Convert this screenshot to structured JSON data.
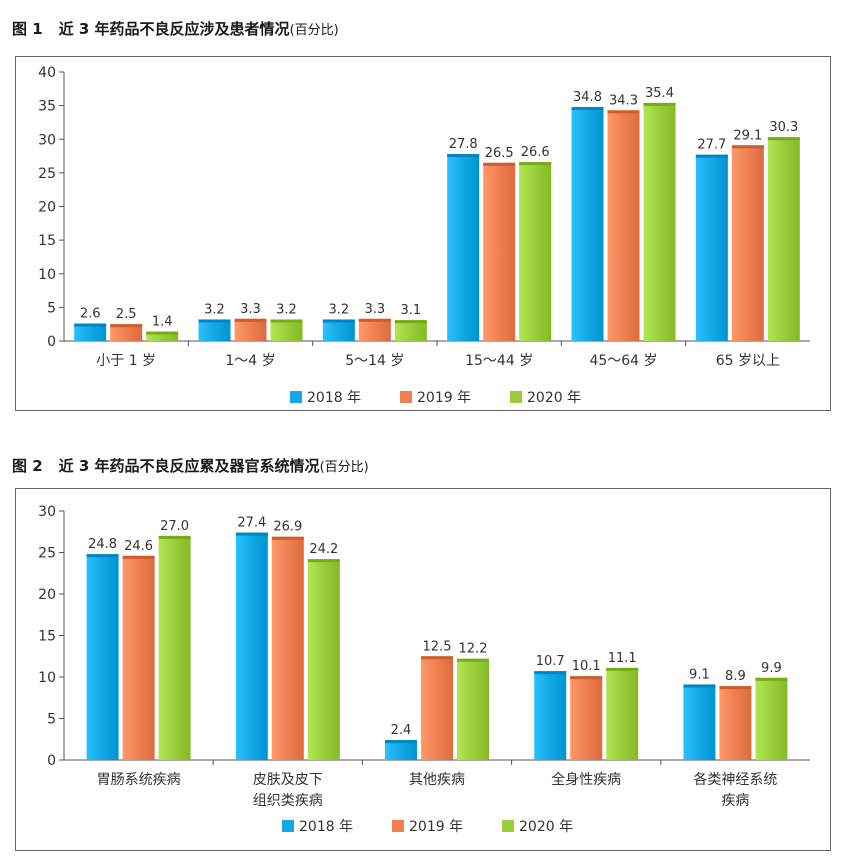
{
  "figure1": {
    "number": "图 1",
    "title": "近 3 年药品不良反应涉及患者情况",
    "unit": "(百分比)"
  },
  "figure2": {
    "number": "图 2",
    "title": "近 3 年药品不良反应累及器官系统情况",
    "unit": "(百分比)"
  },
  "colors": {
    "2018": "#12a8e6",
    "2019": "#f07f51",
    "2020": "#9acd3a"
  },
  "chart_data": [
    {
      "type": "bar",
      "categories": [
        "小于 1 岁",
        "1～4 岁",
        "5～14 岁",
        "15～44 岁",
        "45～64 岁",
        "65 岁以上"
      ],
      "series": [
        {
          "name": "2018 年",
          "values": [
            2.6,
            3.2,
            3.2,
            27.8,
            34.8,
            27.7
          ]
        },
        {
          "name": "2019 年",
          "values": [
            2.5,
            3.3,
            3.3,
            26.5,
            34.3,
            29.1
          ]
        },
        {
          "name": "2020 年",
          "values": [
            1.4,
            3.2,
            3.1,
            26.6,
            35.4,
            30.3
          ]
        }
      ],
      "value_labels": [
        [
          "2.6",
          "3.2",
          "3.2",
          "27.8",
          "34.8",
          "27.7"
        ],
        [
          "2.5",
          "3.3",
          "3.3",
          "26.5",
          "34.3",
          "29.1"
        ],
        [
          "1.4",
          "3.2",
          "3.1",
          "26.6",
          "35.4",
          "30.3"
        ]
      ],
      "ylim": [
        0,
        40
      ],
      "yticks": [
        "0",
        "5",
        "10",
        "15",
        "20",
        "25",
        "30",
        "35",
        "40"
      ],
      "legend_position": "bottom-center",
      "grid": false
    },
    {
      "type": "bar",
      "categories": [
        [
          "胃肠系统疾病"
        ],
        [
          "皮肤及皮下",
          "组织类疾病"
        ],
        [
          "其他疾病"
        ],
        [
          "全身性疾病"
        ],
        [
          "各类神经系统",
          "疾病"
        ]
      ],
      "series": [
        {
          "name": "2018 年",
          "values": [
            24.8,
            27.4,
            2.4,
            10.7,
            9.1
          ]
        },
        {
          "name": "2019 年",
          "values": [
            24.6,
            26.9,
            12.5,
            10.1,
            8.9
          ]
        },
        {
          "name": "2020 年",
          "values": [
            27.0,
            24.2,
            12.2,
            11.1,
            9.9
          ]
        }
      ],
      "value_labels": [
        [
          "24.8",
          "27.4",
          "2.4",
          "10.7",
          "9.1"
        ],
        [
          "24.6",
          "26.9",
          "12.5",
          "10.1",
          "8.9"
        ],
        [
          "27.0",
          "24.2",
          "12.2",
          "11.1",
          "9.9"
        ]
      ],
      "ylim": [
        0,
        30
      ],
      "yticks": [
        "0",
        "5",
        "10",
        "15",
        "20",
        "25",
        "30"
      ],
      "legend_position": "bottom-center",
      "grid": false
    }
  ]
}
